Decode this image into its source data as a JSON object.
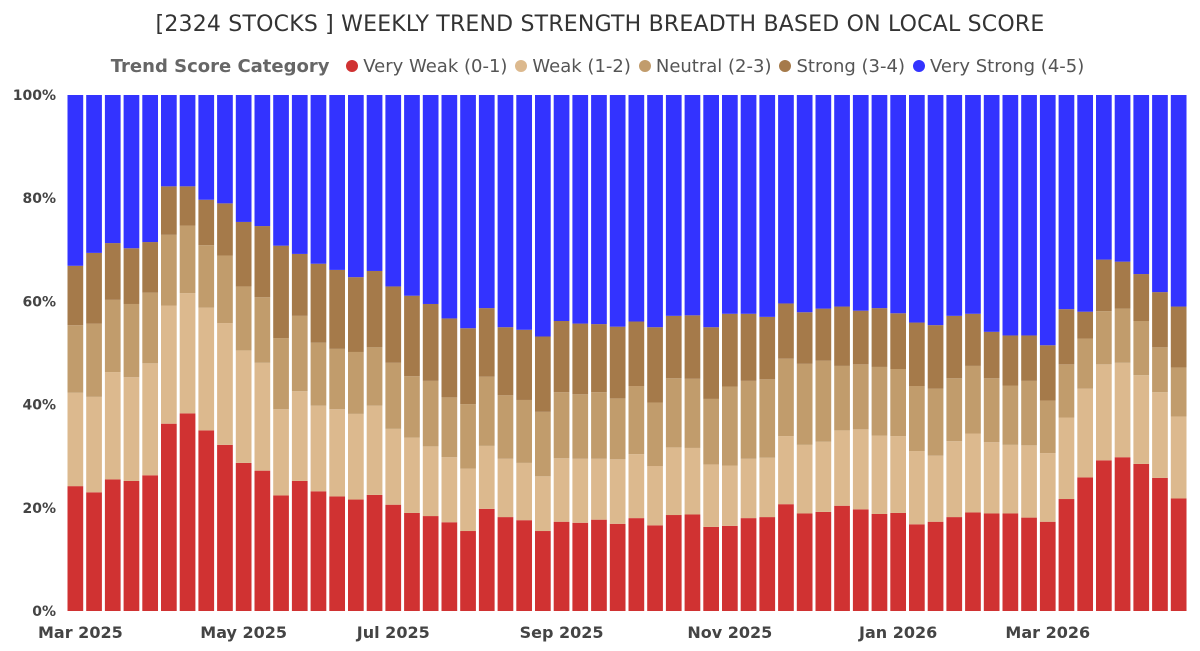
{
  "chart_data": {
    "type": "bar",
    "stacked": true,
    "normalized": true,
    "title": "[2324 STOCKS ] WEEKLY TREND STRENGTH BREADTH BASED ON LOCAL SCORE",
    "legend_title": "Trend Score Category",
    "legend_position": "top",
    "xlabel": "",
    "ylabel": "",
    "ylim": [
      0,
      100
    ],
    "y_ticks": [
      "0%",
      "20%",
      "40%",
      "60%",
      "80%",
      "100%"
    ],
    "grid": false,
    "x_tick_labels": [
      {
        "label": "Mar 2025",
        "index": 0
      },
      {
        "label": "May 2025",
        "index": 9
      },
      {
        "label": "Jul 2025",
        "index": 17
      },
      {
        "label": "Sep 2025",
        "index": 26
      },
      {
        "label": "Nov 2025",
        "index": 35
      },
      {
        "label": "Jan 2026",
        "index": 44
      },
      {
        "label": "Mar 2026",
        "index": 52
      }
    ],
    "categories": [
      "2025-03-03",
      "2025-03-10",
      "2025-03-17",
      "2025-03-24",
      "2025-03-31",
      "2025-04-07",
      "2025-04-14",
      "2025-04-21",
      "2025-04-28",
      "2025-05-05",
      "2025-05-12",
      "2025-05-19",
      "2025-05-26",
      "2025-06-02",
      "2025-06-09",
      "2025-06-16",
      "2025-06-23",
      "2025-06-30",
      "2025-07-07",
      "2025-07-14",
      "2025-07-21",
      "2025-07-28",
      "2025-08-04",
      "2025-08-11",
      "2025-08-18",
      "2025-08-25",
      "2025-09-01",
      "2025-09-08",
      "2025-09-15",
      "2025-09-22",
      "2025-09-29",
      "2025-10-06",
      "2025-10-13",
      "2025-10-20",
      "2025-10-27",
      "2025-11-03",
      "2025-11-10",
      "2025-11-17",
      "2025-11-24",
      "2025-12-01",
      "2025-12-08",
      "2025-12-15",
      "2025-12-22",
      "2025-12-29",
      "2026-01-05",
      "2026-01-12",
      "2026-01-19",
      "2026-01-26",
      "2026-02-02",
      "2026-02-09",
      "2026-02-16",
      "2026-02-23",
      "2026-03-02",
      "2026-03-09",
      "2026-03-16",
      "2026-03-23",
      "2026-03-30",
      "2026-04-06",
      "2026-04-13",
      "2026-04-20"
    ],
    "series": [
      {
        "name": "Very Weak (0-1)",
        "color": "#d03232",
        "values": [
          24.2,
          23.0,
          25.5,
          25.2,
          26.3,
          36.3,
          38.3,
          35.0,
          32.2,
          28.7,
          27.2,
          22.4,
          25.2,
          23.2,
          22.2,
          21.6,
          22.5,
          20.6,
          19.0,
          18.4,
          17.2,
          15.5,
          19.8,
          18.2,
          17.6,
          15.5,
          17.3,
          17.1,
          17.7,
          16.9,
          18.0,
          16.6,
          18.6,
          18.7,
          16.3,
          16.5,
          18.0,
          18.2,
          20.7,
          18.9,
          19.2,
          20.4,
          19.7,
          18.8,
          19.0,
          16.8,
          17.3,
          18.2,
          19.1,
          18.9,
          18.9,
          18.1,
          17.3,
          21.7,
          25.9,
          29.2,
          29.8,
          28.5,
          25.8,
          21.8
        ]
      },
      {
        "name": "Weak (1-2)",
        "color": "#dcb98e",
        "values": [
          18.1,
          18.5,
          20.8,
          20.1,
          21.7,
          22.9,
          23.3,
          23.8,
          23.6,
          21.8,
          20.9,
          16.7,
          17.4,
          16.6,
          16.9,
          16.6,
          17.3,
          14.7,
          14.6,
          13.5,
          12.6,
          12.1,
          12.2,
          11.3,
          11.1,
          10.6,
          12.3,
          12.4,
          11.8,
          12.5,
          12.4,
          11.5,
          13.1,
          12.9,
          12.1,
          11.7,
          11.5,
          11.5,
          13.2,
          13.3,
          13.6,
          14.6,
          15.5,
          15.2,
          14.9,
          14.2,
          12.8,
          14.7,
          15.3,
          13.8,
          13.3,
          14.0,
          13.3,
          15.8,
          17.2,
          18.6,
          18.3,
          17.2,
          16.6,
          15.9
        ]
      },
      {
        "name": "Neutral (2-3)",
        "color": "#c19c6c",
        "values": [
          13.1,
          14.2,
          14.0,
          14.2,
          13.7,
          13.7,
          13.1,
          12.1,
          13.1,
          12.4,
          12.7,
          13.8,
          14.6,
          12.2,
          11.7,
          12.0,
          11.3,
          12.8,
          11.9,
          12.7,
          11.6,
          12.5,
          13.4,
          12.3,
          12.2,
          12.5,
          12.8,
          12.5,
          12.9,
          11.8,
          13.2,
          12.3,
          13.4,
          13.4,
          12.7,
          15.3,
          15.1,
          15.2,
          15.0,
          15.7,
          15.7,
          12.5,
          12.6,
          13.3,
          13.0,
          12.6,
          13.0,
          12.2,
          13.1,
          12.4,
          11.5,
          12.5,
          10.2,
          10.3,
          9.7,
          10.3,
          10.5,
          10.5,
          8.7,
          9.5
        ]
      },
      {
        "name": "Strong (3-4)",
        "color": "#a57a4a",
        "values": [
          11.5,
          13.7,
          11.0,
          10.8,
          9.8,
          9.4,
          7.6,
          8.8,
          10.1,
          12.5,
          13.8,
          17.9,
          12.0,
          15.3,
          15.3,
          14.5,
          14.8,
          14.8,
          15.6,
          14.9,
          15.3,
          14.7,
          13.3,
          13.2,
          13.6,
          14.6,
          13.8,
          13.7,
          13.2,
          13.9,
          12.5,
          14.6,
          12.1,
          12.3,
          13.9,
          14.1,
          13.0,
          12.1,
          10.7,
          10.0,
          10.1,
          11.5,
          10.4,
          11.4,
          10.8,
          12.3,
          12.3,
          12.1,
          10.1,
          9.0,
          9.7,
          8.8,
          10.7,
          10.7,
          5.2,
          10.0,
          9.1,
          9.1,
          10.7,
          11.8
        ]
      },
      {
        "name": "Very Strong (4-5)",
        "color": "#3333ff",
        "values": [
          33.1,
          30.6,
          28.7,
          29.7,
          28.5,
          17.7,
          17.7,
          20.3,
          21.0,
          24.6,
          25.4,
          29.2,
          30.8,
          32.7,
          33.9,
          35.3,
          34.1,
          37.1,
          38.9,
          40.5,
          43.3,
          45.2,
          41.3,
          45.0,
          45.5,
          46.8,
          43.8,
          44.3,
          44.4,
          44.9,
          43.9,
          45.0,
          42.8,
          42.7,
          45.0,
          42.4,
          42.4,
          43.0,
          40.4,
          42.1,
          41.4,
          41.0,
          41.8,
          41.3,
          42.3,
          44.1,
          44.6,
          42.8,
          42.4,
          45.9,
          46.6,
          46.6,
          48.5,
          41.5,
          42.0,
          31.9,
          32.3,
          34.7,
          38.2,
          41.0
        ]
      }
    ]
  }
}
